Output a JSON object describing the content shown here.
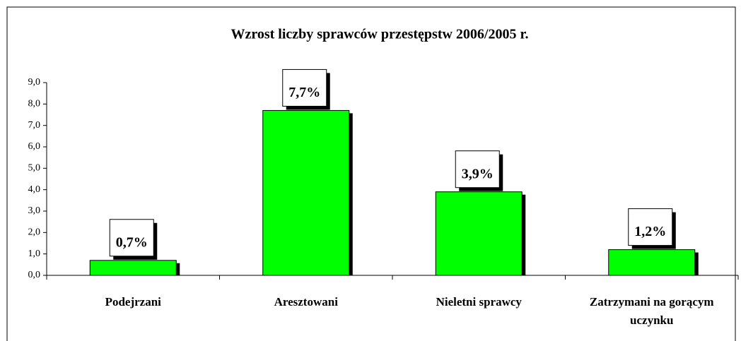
{
  "chart_data": {
    "type": "bar",
    "title": "Wzrost liczby sprawców przestępstw 2006/2005 r.",
    "categories": [
      "Podejrzani",
      "Aresztowani",
      "Nieletni sprawcy",
      "Zatrzymani na gorącym uczynku"
    ],
    "values": [
      0.7,
      7.7,
      3.9,
      1.2
    ],
    "value_labels": [
      "0,7%",
      "7,7%",
      "3,9%",
      "1,2%"
    ],
    "color": "#00ff00",
    "ylim": [
      0,
      9
    ],
    "yticks": [
      {
        "value": 0,
        "label": "0,0"
      },
      {
        "value": 1,
        "label": "1,0"
      },
      {
        "value": 2,
        "label": "2,0"
      },
      {
        "value": 3,
        "label": "3,0"
      },
      {
        "value": 4,
        "label": "4,0"
      },
      {
        "value": 5,
        "label": "5,0"
      },
      {
        "value": 6,
        "label": "6,0"
      },
      {
        "value": 7,
        "label": "7,0"
      },
      {
        "value": 8,
        "label": "8,0"
      },
      {
        "value": 9,
        "label": "9,0"
      }
    ],
    "grid": false
  }
}
